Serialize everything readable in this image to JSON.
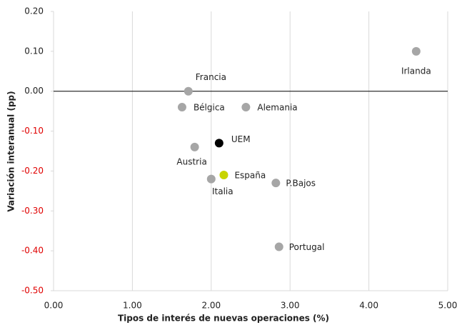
{
  "chart_data": {
    "type": "scatter",
    "x_label": "Tipos de interés de nuevas operaciones (%)",
    "y_label": "Variación interanual (pp)",
    "labels": [
      "Irlanda",
      "Francia",
      "Bélgica",
      "Alemania",
      "UEM",
      "Austria",
      "Italia",
      "España",
      "P.Bajos",
      "Portugal"
    ],
    "x": [
      4.6,
      1.71,
      1.63,
      2.44,
      2.1,
      1.79,
      2.0,
      2.16,
      2.82,
      2.86
    ],
    "values": [
      0.1,
      0.0,
      -0.04,
      -0.04,
      -0.13,
      -0.14,
      -0.22,
      -0.21,
      -0.23,
      -0.39
    ],
    "colors": [
      "#a6a6a6",
      "#a6a6a6",
      "#a6a6a6",
      "#a6a6a6",
      "#000000",
      "#a6a6a6",
      "#a6a6a6",
      "#c8d400",
      "#a6a6a6",
      "#a6a6a6"
    ],
    "xlim": [
      0,
      5
    ],
    "ylim": [
      -0.5,
      0.2
    ],
    "xticks": [
      {
        "value": 0,
        "label": "0.00"
      },
      {
        "value": 1,
        "label": "1.00"
      },
      {
        "value": 2,
        "label": "2.00"
      },
      {
        "value": 3,
        "label": "3.00"
      },
      {
        "value": 4,
        "label": "4.00"
      },
      {
        "value": 5,
        "label": "5.00"
      }
    ],
    "yticks": [
      {
        "value": 0.2,
        "label": "0.20"
      },
      {
        "value": 0.1,
        "label": "0.10"
      },
      {
        "value": 0,
        "label": "0.00"
      },
      {
        "value": -0.1,
        "label": "-0.10"
      },
      {
        "value": -0.2,
        "label": "-0.20"
      },
      {
        "value": -0.3,
        "label": "-0.30"
      },
      {
        "value": -0.4,
        "label": "-0.40"
      },
      {
        "value": -0.5,
        "label": "-0.50"
      }
    ],
    "negative_tick_color": "#e00000",
    "grid": true
  }
}
